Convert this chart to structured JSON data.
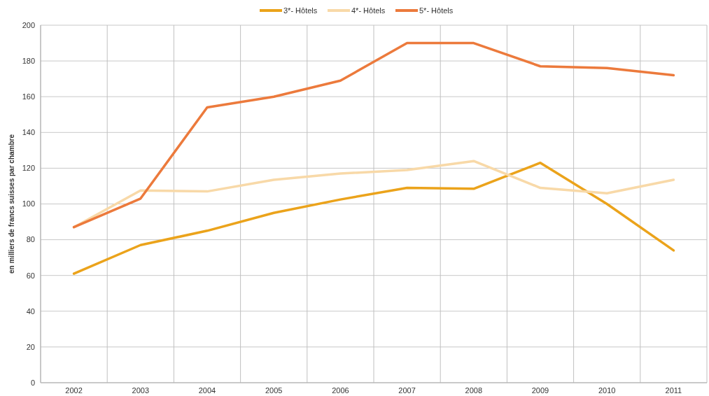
{
  "chart_data": {
    "type": "line",
    "ylabel": "en milliers de francs suisses par chambre",
    "categories": [
      "2002",
      "2003",
      "2004",
      "2005",
      "2006",
      "2007",
      "2008",
      "2009",
      "2010",
      "2011"
    ],
    "series": [
      {
        "name": "3*- Hôtels",
        "color": "#eba31b",
        "values": [
          61,
          77,
          85,
          95,
          102.5,
          109,
          108.5,
          123,
          100,
          74
        ]
      },
      {
        "name": "4*- Hôtels",
        "color": "#f8d9a8",
        "values": [
          87,
          107.5,
          107,
          113.5,
          117,
          119,
          124,
          109,
          106,
          113.5
        ]
      },
      {
        "name": "5*- Hôtels",
        "color": "#ec7a3c",
        "values": [
          87,
          103,
          154,
          160,
          169,
          190,
          190,
          177,
          176,
          172
        ]
      }
    ],
    "ylim": [
      0,
      200
    ],
    "yticks": [
      0,
      20,
      40,
      60,
      80,
      100,
      120,
      140,
      160,
      180,
      200
    ],
    "grid": true,
    "legend": "top",
    "marker": "none",
    "line_style": "solid"
  }
}
